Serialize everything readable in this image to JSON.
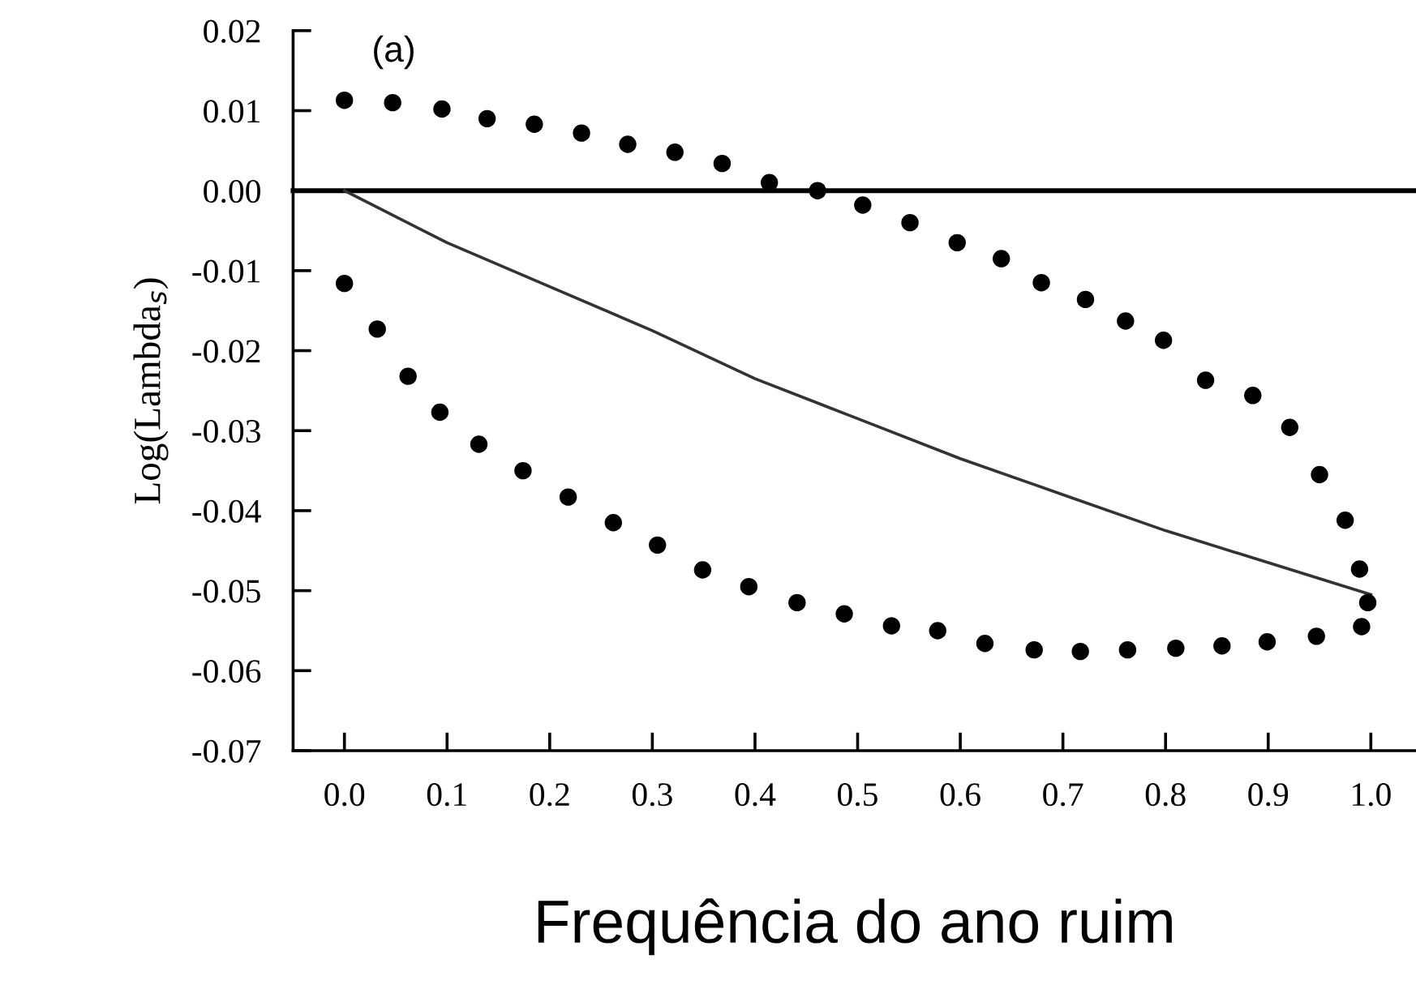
{
  "chart_data": {
    "type": "scatter",
    "xlabel": "Frequência do ano ruim",
    "ylabel": "Log(Lambda$_{s}$)",
    "annotations": [
      "(a)"
    ],
    "xlim": [
      -0.05,
      1.044
    ],
    "xticks": [
      {
        "value": 0,
        "label": "0.0"
      },
      0.1,
      0.2,
      0.3,
      0.4,
      0.5,
      0.6,
      0.7,
      0.8,
      0.9,
      {
        "value": 1,
        "label": "1.0"
      }
    ],
    "ylim": [
      -0.07,
      0.02
    ],
    "yticks": [
      {
        "value": -0.07,
        "label": "-0.07"
      },
      {
        "value": -0.06,
        "label": "-0.06"
      },
      {
        "value": -0.05,
        "label": "-0.05"
      },
      {
        "value": -0.04,
        "label": "-0.04"
      },
      {
        "value": -0.03,
        "label": "-0.03"
      },
      {
        "value": -0.02,
        "label": "-0.02"
      },
      {
        "value": -0.01,
        "label": "-0.01"
      },
      {
        "value": 0,
        "label": "0.00"
      },
      {
        "value": 0.01,
        "label": "0.01"
      },
      {
        "value": 0.02,
        "label": "0.02"
      }
    ],
    "grid": false,
    "legend": false,
    "marker": "circle",
    "ref_lines": [
      {
        "axis": "y",
        "value": 0,
        "color": "#000000"
      }
    ],
    "series": [
      {
        "color": "#000000",
        "x": [
          0,
          0.047,
          0.095,
          0.139,
          0.185,
          0.231,
          0.276,
          0.322,
          0.368,
          0.414,
          0.461,
          0.505,
          0.551,
          0.597,
          0.64,
          0.679,
          0.722,
          0.761,
          0.798,
          0.839,
          0.885,
          0.921,
          0.95,
          0.975,
          0.989,
          0.997
        ],
        "values": [
          0.0113,
          0.011,
          0.0102,
          0.009,
          0.0083,
          0.0072,
          0.0058,
          0.0048,
          0.0034,
          0.001,
          0.0,
          -0.0018,
          -0.004,
          -0.0065,
          -0.0085,
          -0.0115,
          -0.0136,
          -0.0163,
          -0.0187,
          -0.0237,
          -0.0256,
          -0.0296,
          -0.0355,
          -0.0412,
          -0.0473,
          -0.0515
        ]
      },
      {
        "color": "#000000",
        "x": [
          0,
          0.032,
          0.062,
          0.093,
          0.131,
          0.174,
          0.218,
          0.262,
          0.305,
          0.349,
          0.394,
          0.441,
          0.487,
          0.533,
          0.578,
          0.624,
          0.672,
          0.717,
          0.763,
          0.81,
          0.855,
          0.899,
          0.947,
          0.991
        ],
        "values": [
          -0.0116,
          -0.0173,
          -0.0232,
          -0.0277,
          -0.0317,
          -0.035,
          -0.0383,
          -0.0415,
          -0.0443,
          -0.0474,
          -0.0495,
          -0.0515,
          -0.0529,
          -0.0544,
          -0.055,
          -0.0566,
          -0.0574,
          -0.0576,
          -0.0574,
          -0.0572,
          -0.0569,
          -0.0564,
          -0.0557,
          -0.0545
        ]
      },
      {
        "type": "line",
        "color": "#333333",
        "marker": "none",
        "x": [
          0,
          0.1,
          0.2,
          0.3,
          0.4,
          0.5,
          0.6,
          0.7,
          0.8,
          0.9,
          1.0
        ],
        "values": [
          0,
          -0.0065,
          -0.012,
          -0.0175,
          -0.0235,
          -0.0285,
          -0.0335,
          -0.038,
          -0.0425,
          -0.0465,
          -0.0505
        ]
      }
    ]
  }
}
